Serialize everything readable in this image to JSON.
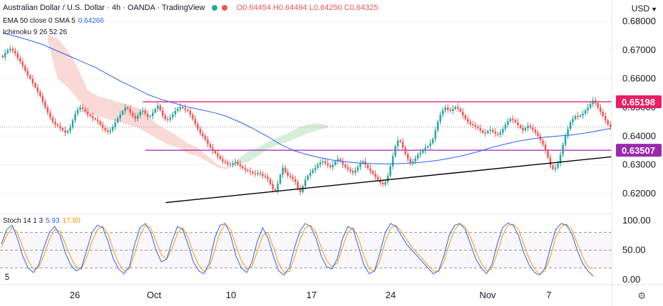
{
  "header": {
    "pair": "Australian Dollar / U.S. Dollar · 4h · OANDA · TradingView",
    "ohlc": "O0.64454 H0.64494 L0.64250 C0.64325",
    "currency": "USD",
    "currency_icon": "chevron-down-icon"
  },
  "indicators": {
    "ema_label": "EMA 50 close 0 SMA 5",
    "ema_value": "0.64266",
    "ichimoku_label": "Ichimoku 9 26 52 26",
    "stoch_label": "Stoch 14 1 3",
    "stoch_k": "5.93",
    "stoch_d": "17.80"
  },
  "colors": {
    "up": "#26a69a",
    "down": "#ef5350",
    "ema": "#2962ff",
    "resistance": "#e91e63",
    "support": "#9c27b0",
    "trendline": "#000000",
    "cloud_bear": "#f8d0cc",
    "cloud_bull": "#cce8d0",
    "stoch_k": "#2962ff",
    "stoch_d": "#ff9800"
  },
  "chart_data": {
    "type": "candlestick",
    "price_axis": {
      "ticks": [
        "0.68000",
        "0.67000",
        "0.66000",
        "0.65000",
        "0.64000",
        "0.63000",
        "0.62000"
      ],
      "tick_values": [
        0.68,
        0.67,
        0.66,
        0.65,
        0.64,
        0.63,
        0.62
      ],
      "range": [
        0.6135,
        0.6875
      ]
    },
    "x_axis": {
      "labels": [
        "26",
        "Oct",
        "10",
        "17",
        "24",
        "Nov",
        "7"
      ]
    },
    "horizontal_levels": [
      {
        "label": "0.65198",
        "value": 0.65198,
        "color": "#e91e63"
      },
      {
        "label": "0.63507",
        "value": 0.63507,
        "color": "#9c27b0"
      }
    ],
    "trendline": {
      "from": [
        14.5,
        0.6168
      ],
      "to": [
        51.3,
        0.6328
      ]
    },
    "candles_close": [
      0.6675,
      0.669,
      0.67,
      0.6705,
      0.6698,
      0.6688,
      0.6672,
      0.666,
      0.6645,
      0.6628,
      0.6612,
      0.66,
      0.6585,
      0.657,
      0.6555,
      0.654,
      0.652,
      0.65,
      0.6482,
      0.6465,
      0.645,
      0.644,
      0.6435,
      0.6428,
      0.642,
      0.6412,
      0.6418,
      0.643,
      0.6455,
      0.6478,
      0.6492,
      0.65,
      0.6495,
      0.6485,
      0.6475,
      0.647,
      0.6462,
      0.6458,
      0.6452,
      0.644,
      0.6428,
      0.642,
      0.6415,
      0.642,
      0.6432,
      0.6448,
      0.6462,
      0.6475,
      0.6488,
      0.65,
      0.6495,
      0.6482,
      0.647,
      0.646,
      0.6472,
      0.6485,
      0.649,
      0.6478,
      0.6468,
      0.647,
      0.6482,
      0.6495,
      0.6506,
      0.649,
      0.6472,
      0.646,
      0.6458,
      0.6465,
      0.6476,
      0.6488,
      0.6495,
      0.6502,
      0.6498,
      0.6492,
      0.6488,
      0.6475,
      0.646,
      0.6442,
      0.6425,
      0.641,
      0.64,
      0.6388,
      0.6372,
      0.636,
      0.635,
      0.634,
      0.633,
      0.632,
      0.6312,
      0.6308,
      0.6302,
      0.63,
      0.6305,
      0.631,
      0.6302,
      0.6295,
      0.6288,
      0.6282,
      0.6278,
      0.6275,
      0.627,
      0.6268,
      0.6272,
      0.6268,
      0.6262,
      0.6258,
      0.625,
      0.6232,
      0.6215,
      0.621,
      0.6235,
      0.6265,
      0.629,
      0.6275,
      0.6262,
      0.6258,
      0.625,
      0.624,
      0.6218,
      0.6205,
      0.6225,
      0.6248,
      0.6262,
      0.6272,
      0.6282,
      0.629,
      0.63,
      0.6308,
      0.6312,
      0.6305,
      0.6298,
      0.6292,
      0.63,
      0.6312,
      0.632,
      0.6312,
      0.63,
      0.6292,
      0.6285,
      0.6278,
      0.6272,
      0.628,
      0.6292,
      0.6305,
      0.6312,
      0.63,
      0.6288,
      0.6278,
      0.6268,
      0.6258,
      0.6248,
      0.6238,
      0.6232,
      0.624,
      0.6262,
      0.6295,
      0.633,
      0.6365,
      0.6385,
      0.638,
      0.636,
      0.6338,
      0.632,
      0.6305,
      0.6312,
      0.6322,
      0.6335,
      0.6342,
      0.635,
      0.636,
      0.6365,
      0.6375,
      0.639,
      0.642,
      0.645,
      0.6475,
      0.649,
      0.65,
      0.6492,
      0.6488,
      0.6495,
      0.6502,
      0.6496,
      0.6485,
      0.6472,
      0.646,
      0.645,
      0.6442,
      0.6438,
      0.6432,
      0.6428,
      0.642,
      0.6412,
      0.641,
      0.6418,
      0.6422,
      0.6415,
      0.6408,
      0.6405,
      0.6412,
      0.6425,
      0.644,
      0.6452,
      0.646,
      0.6456,
      0.6448,
      0.6438,
      0.6428,
      0.642,
      0.6428,
      0.6436,
      0.643,
      0.6422,
      0.6412,
      0.64,
      0.6385,
      0.637,
      0.635,
      0.6325,
      0.6298,
      0.6285,
      0.629,
      0.6305,
      0.6335,
      0.637,
      0.64,
      0.6425,
      0.6448,
      0.646,
      0.647,
      0.6468,
      0.6472,
      0.6478,
      0.649,
      0.65,
      0.6512,
      0.6525,
      0.6515,
      0.65,
      0.6485,
      0.647,
      0.6455,
      0.644,
      0.6432
    ],
    "ema50": [
      0.676,
      0.6748,
      0.6735,
      0.672,
      0.67,
      0.668,
      0.666,
      0.664,
      0.6615,
      0.659,
      0.6568,
      0.6545,
      0.6528,
      0.6515,
      0.6502,
      0.6492,
      0.6482,
      0.6468,
      0.6448,
      0.6425,
      0.64,
      0.6372,
      0.635,
      0.6336,
      0.6325,
      0.6316,
      0.631,
      0.6306,
      0.6304,
      0.6303,
      0.6304,
      0.6306,
      0.631,
      0.6316,
      0.6324,
      0.6334,
      0.6346,
      0.636,
      0.6372,
      0.6382,
      0.639,
      0.6396,
      0.64,
      0.6404,
      0.641,
      0.6418,
      0.6427
    ],
    "cloud": [
      {
        "x": 18,
        "a": 0.6755,
        "b": 0.673
      },
      {
        "x": 22,
        "a": 0.674,
        "b": 0.66
      },
      {
        "x": 26,
        "a": 0.67,
        "b": 0.657
      },
      {
        "x": 30,
        "a": 0.664,
        "b": 0.653
      },
      {
        "x": 34,
        "a": 0.656,
        "b": 0.648
      },
      {
        "x": 38,
        "a": 0.654,
        "b": 0.647
      },
      {
        "x": 42,
        "a": 0.653,
        "b": 0.646
      },
      {
        "x": 46,
        "a": 0.652,
        "b": 0.645
      },
      {
        "x": 50,
        "a": 0.651,
        "b": 0.644
      },
      {
        "x": 54,
        "a": 0.65,
        "b": 0.643
      },
      {
        "x": 58,
        "a": 0.647,
        "b": 0.641
      },
      {
        "x": 62,
        "a": 0.644,
        "b": 0.639
      },
      {
        "x": 66,
        "a": 0.642,
        "b": 0.637
      },
      {
        "x": 70,
        "a": 0.64,
        "b": 0.636
      },
      {
        "x": 74,
        "a": 0.6375,
        "b": 0.634
      },
      {
        "x": 78,
        "a": 0.636,
        "b": 0.633
      },
      {
        "x": 82,
        "a": 0.633,
        "b": 0.631
      },
      {
        "x": 86,
        "a": 0.63,
        "b": 0.629
      },
      {
        "x": 90,
        "a": 0.629,
        "b": 0.6285
      },
      {
        "x": 94,
        "a": 0.63,
        "b": 0.632
      },
      {
        "x": 98,
        "a": 0.631,
        "b": 0.6345
      },
      {
        "x": 102,
        "a": 0.633,
        "b": 0.636
      },
      {
        "x": 106,
        "a": 0.6355,
        "b": 0.638
      },
      {
        "x": 110,
        "a": 0.637,
        "b": 0.6395
      },
      {
        "x": 114,
        "a": 0.638,
        "b": 0.641
      },
      {
        "x": 118,
        "a": 0.6395,
        "b": 0.643
      },
      {
        "x": 122,
        "a": 0.641,
        "b": 0.644
      },
      {
        "x": 126,
        "a": 0.642,
        "b": 0.6445
      },
      {
        "x": 130,
        "a": 0.643,
        "b": 0.6438
      }
    ],
    "stochastic": {
      "ticks": [
        "100.00",
        "50.00",
        "0.00"
      ],
      "tick_values": [
        100,
        50,
        0
      ],
      "bands": [
        80,
        20
      ],
      "k": [
        60,
        85,
        92,
        70,
        40,
        20,
        12,
        25,
        55,
        80,
        90,
        75,
        45,
        25,
        15,
        20,
        50,
        80,
        92,
        88,
        65,
        35,
        18,
        10,
        22,
        60,
        88,
        95,
        80,
        50,
        30,
        35,
        65,
        90,
        85,
        60,
        30,
        15,
        10,
        28,
        70,
        92,
        95,
        75,
        40,
        20,
        12,
        30,
        65,
        88,
        70,
        40,
        15,
        8,
        20,
        55,
        82,
        95,
        90,
        70,
        40,
        22,
        18,
        35,
        70,
        90,
        85,
        55,
        25,
        10,
        15,
        45,
        80,
        95,
        90,
        75,
        60,
        50,
        40,
        30,
        20,
        10,
        15,
        40,
        75,
        92,
        95,
        85,
        60,
        35,
        20,
        10,
        25,
        60,
        88,
        96,
        92,
        75,
        45,
        25,
        12,
        8,
        20,
        55,
        85,
        95,
        92,
        78,
        50,
        28,
        15,
        6
      ],
      "d": [
        55,
        75,
        88,
        80,
        55,
        32,
        18,
        20,
        42,
        68,
        85,
        82,
        60,
        38,
        22,
        18,
        38,
        65,
        85,
        90,
        78,
        50,
        28,
        15,
        18,
        45,
        75,
        92,
        88,
        65,
        42,
        35,
        52,
        78,
        88,
        72,
        45,
        25,
        14,
        20,
        50,
        80,
        94,
        85,
        58,
        32,
        18,
        22,
        48,
        75,
        80,
        55,
        28,
        12,
        14,
        38,
        68,
        88,
        92,
        80,
        55,
        32,
        22,
        28,
        55,
        80,
        88,
        70,
        40,
        18,
        14,
        32,
        65,
        88,
        92,
        82,
        68,
        55,
        45,
        35,
        25,
        15,
        14,
        30,
        60,
        85,
        94,
        90,
        72,
        48,
        28,
        15,
        18,
        45,
        75,
        92,
        94,
        85,
        60,
        35,
        18,
        10,
        15,
        40,
        72,
        90,
        94,
        85,
        62,
        40,
        22,
        18
      ]
    }
  }
}
